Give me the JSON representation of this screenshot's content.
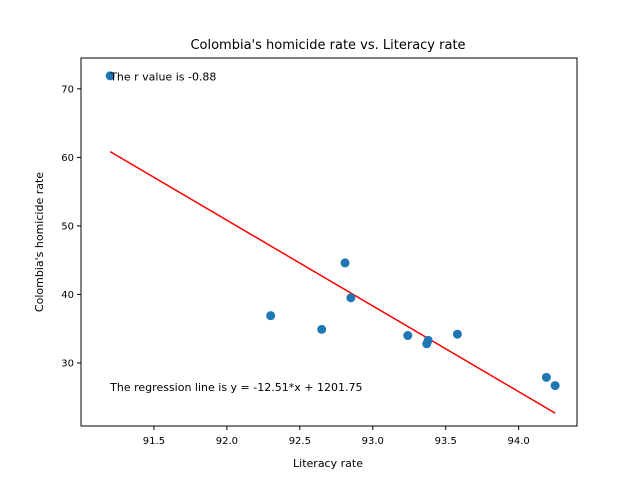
{
  "chart_data": {
    "type": "scatter",
    "title": "Colombia's homicide rate vs. Literacy rate",
    "xlabel": "Literacy rate",
    "ylabel": "Colombia's homicide rate",
    "xlim": [
      91.0,
      94.4
    ],
    "ylim": [
      20.8,
      74.5
    ],
    "xticks": [
      91.5,
      92.0,
      92.5,
      93.0,
      93.5,
      94.0
    ],
    "yticks": [
      30,
      40,
      50,
      60,
      70
    ],
    "grid": false,
    "point_color": "#1f77b4",
    "line_color": "#ff0000",
    "points": [
      {
        "x": 91.2,
        "y": 71.9
      },
      {
        "x": 92.3,
        "y": 36.9
      },
      {
        "x": 92.65,
        "y": 34.9
      },
      {
        "x": 92.81,
        "y": 44.6
      },
      {
        "x": 92.85,
        "y": 39.5
      },
      {
        "x": 93.24,
        "y": 34.0
      },
      {
        "x": 93.37,
        "y": 32.8
      },
      {
        "x": 93.38,
        "y": 33.3
      },
      {
        "x": 93.58,
        "y": 34.2
      },
      {
        "x": 94.19,
        "y": 27.9
      },
      {
        "x": 94.25,
        "y": 26.7
      }
    ],
    "regression": {
      "slope": -12.51,
      "intercept": 1201.75,
      "x_range": [
        91.2,
        94.25
      ]
    },
    "annotations": [
      {
        "text": "The r value is -0.88",
        "x": 91.2,
        "y": 71.8
      },
      {
        "text": "The regression line is y = -12.51*x + 1201.75",
        "x": 91.2,
        "y": 26.5
      }
    ]
  }
}
